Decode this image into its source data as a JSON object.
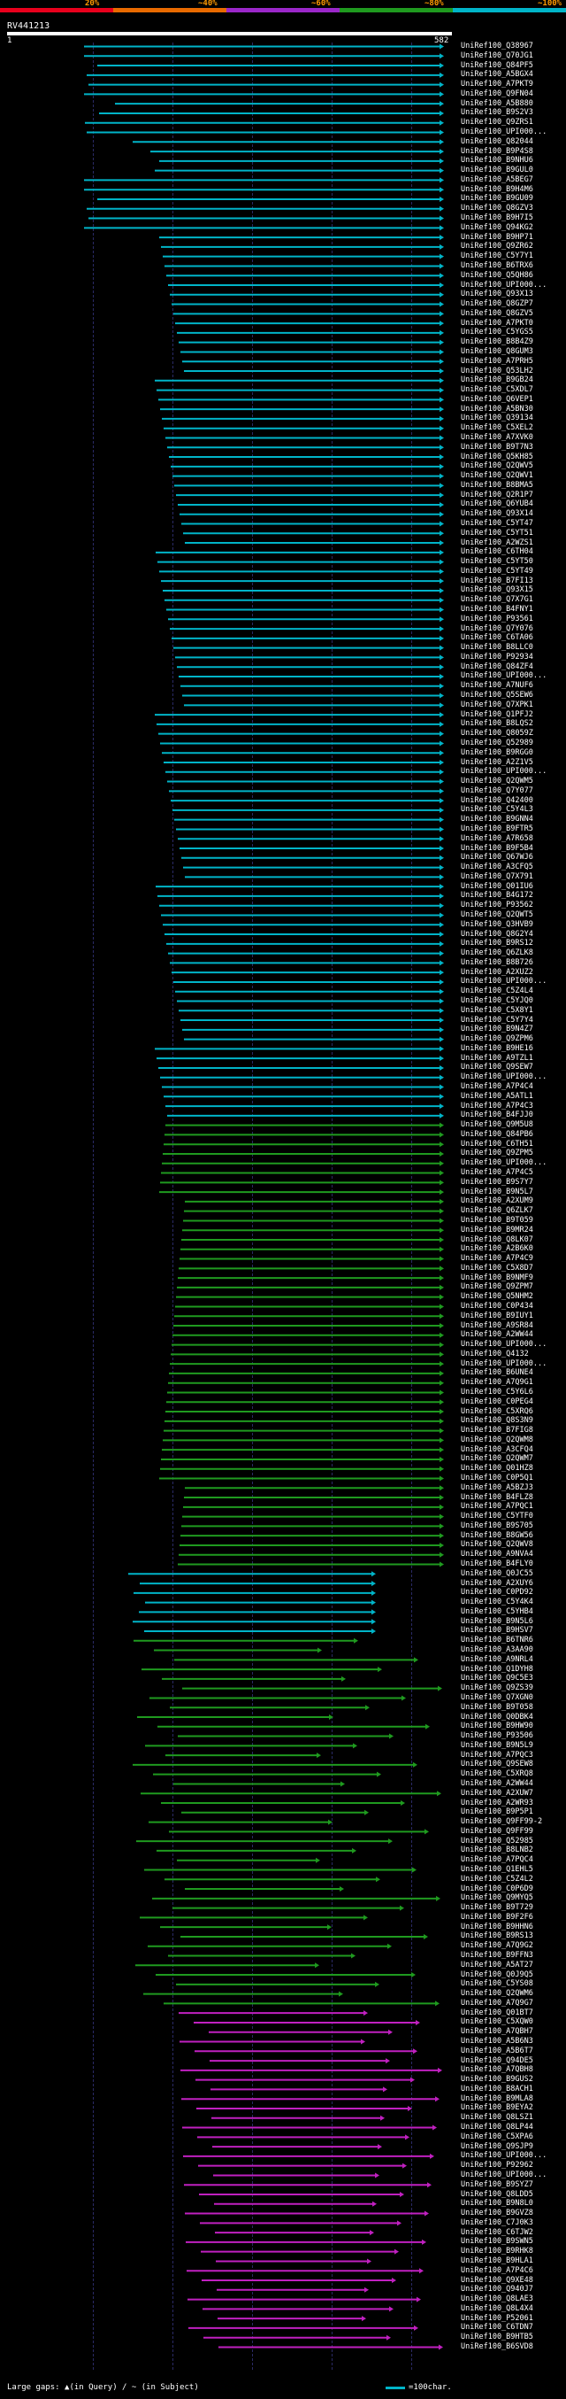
{
  "legend": [
    {
      "label": "20%",
      "color": "#e8001c"
    },
    {
      "label": "~40%",
      "color": "#e86a00"
    },
    {
      "label": "~60%",
      "color": "#9b27c9"
    },
    {
      "label": "~80%",
      "color": "#1f9a1f"
    },
    {
      "label": "~100%",
      "color": "#00b4c8"
    }
  ],
  "query": {
    "title": "RV441213",
    "start": "1",
    "end": "582"
  },
  "footer": {
    "gaps_text": "Large gaps: ▲(in Query) / ~ (in Subject)",
    "scale_text": "=100char."
  },
  "hit_groups": [
    {
      "color": "#00b4c8",
      "labels": [
        "UniRef100_Q38967",
        "UniRef100_Q70JG1",
        "UniRef100_Q84PF5",
        "UniRef100_A5BGX4",
        "UniRef100_A7PKT9",
        "UniRef100_Q9FN04",
        "UniRef100_A5B880",
        "UniRef100_B9S2V3",
        "UniRef100_Q9ZRS1",
        "UniRef100_UPI000...",
        "UniRef100_Q82044",
        "UniRef100_B9P4S8",
        "UniRef100_B9NHU6",
        "UniRef100_B9GUL0",
        "UniRef100_A5BEG7",
        "UniRef100_B9H4M6",
        "UniRef100_B9GU09",
        "UniRef100_Q8GZV3",
        "UniRef100_B9H7I5",
        "UniRef100_Q94KG2",
        "UniRef100_B9HP71",
        "UniRef100_Q9ZR62",
        "UniRef100_C5Y7Y1",
        "UniRef100_B6TRX6",
        "UniRef100_Q5QH86",
        "UniRef100_UPI000...",
        "UniRef100_Q93X13",
        "UniRef100_Q8GZP7",
        "UniRef100_Q8GZV5",
        "UniRef100_A7PKT0",
        "UniRef100_C5YGS5",
        "UniRef100_B8B4Z9",
        "UniRef100_Q8GUM3",
        "UniRef100_A7PRH5",
        "UniRef100_Q53LH2",
        "UniRef100_B9GB24",
        "UniRef100_C5XDL7",
        "UniRef100_Q6VEP1",
        "UniRef100_A5BN30",
        "UniRef100_Q39134",
        "UniRef100_C5XEL2",
        "UniRef100_A7XVK0",
        "UniRef100_B9T7N3",
        "UniRef100_Q5KH85",
        "UniRef100_Q2QWV5",
        "UniRef100_Q2QWV1",
        "UniRef100_B8BMA5",
        "UniRef100_Q2R1P7",
        "UniRef100_Q6YUB4",
        "UniRef100_Q93X14",
        "UniRef100_C5YT47",
        "UniRef100_C5YT51",
        "UniRef100_A2WZS1",
        "UniRef100_C6TH04",
        "UniRef100_C5YT50",
        "UniRef100_C5YT49",
        "UniRef100_B7FI13",
        "UniRef100_Q93X15",
        "UniRef100_Q7X7G1",
        "UniRef100_B4FNY1",
        "UniRef100_P93561",
        "UniRef100_Q7Y076",
        "UniRef100_C6TA06",
        "UniRef100_B8LLC0",
        "UniRef100_P92934",
        "UniRef100_Q84ZF4",
        "UniRef100_UPI000...",
        "UniRef100_A7NUF6",
        "UniRef100_Q5SEW6",
        "UniRef100_Q7XPK1",
        "UniRef100_Q1PFJ2",
        "UniRef100_B8LQS2",
        "UniRef100_Q8059Z",
        "UniRef100_Q52989",
        "UniRef100_B9RGG0",
        "UniRef100_A2Z1V5",
        "UniRef100_UPI000...",
        "UniRef100_Q2QWM5",
        "UniRef100_Q7Y077",
        "UniRef100_Q42400",
        "UniRef100_C5Y4L3",
        "UniRef100_B9GNN4",
        "UniRef100_B9FTR5",
        "UniRef100_A7R658",
        "UniRef100_B9F5B4",
        "UniRef100_Q67WJ6",
        "UniRef100_A3CFQ5",
        "UniRef100_Q7X791",
        "UniRef100_Q01IU6",
        "UniRef100_B4G172",
        "UniRef100_P93562",
        "UniRef100_Q2QWT5",
        "UniRef100_Q3HVB9",
        "UniRef100_Q8G2Y4",
        "UniRef100_B9RS12",
        "UniRef100_Q6ZLK8",
        "UniRef100_B8B726",
        "UniRef100_A2XUZ2",
        "UniRef100_UPI000...",
        "UniRef100_C5Z4L4",
        "UniRef100_C5YJQ0",
        "UniRef100_C5X8Y1",
        "UniRef100_C5Y7Y4",
        "UniRef100_B9N4Z7",
        "UniRef100_Q9ZPM6",
        "UniRef100_B9HE16",
        "UniRef100_A9TZL1",
        "UniRef100_Q9SEW7",
        "UniRef100_UPI000...",
        "UniRef100_A7P4C4",
        "UniRef100_A5ATL1",
        "UniRef100_A7P4C3",
        "UniRef100_B4FJJ0"
      ]
    },
    {
      "color": "#1f9a1f",
      "labels": [
        "UniRef100_Q9M5U8",
        "UniRef100_Q84PB6",
        "UniRef100_C6TH51",
        "UniRef100_Q9ZPM5",
        "UniRef100_UPI000...",
        "UniRef100_A7P4C5",
        "UniRef100_B9S7Y7",
        "UniRef100_B9N5L7",
        "UniRef100_A2XUM9",
        "UniRef100_Q6ZLK7",
        "UniRef100_B9T059",
        "UniRef100_B9MR24",
        "UniRef100_Q8LK07",
        "UniRef100_A2B6K0",
        "UniRef100_A7P4C9",
        "UniRef100_C5X8D7",
        "UniRef100_B9NMF9",
        "UniRef100_Q9ZPM7",
        "UniRef100_Q5NHM2",
        "UniRef100_C0P434",
        "UniRef100_B9IUY1",
        "UniRef100_A9SR84",
        "UniRef100_A2WW44",
        "UniRef100_UPI000...",
        "UniRef100_Q4132",
        "UniRef100_UPI000...",
        "UniRef100_B6UNE4",
        "UniRef100_A7Q9G1",
        "UniRef100_C5Y6L6",
        "UniRef100_C0PEG4",
        "UniRef100_C5XRQ6",
        "UniRef100_Q8S3N9",
        "UniRef100_B7FIG8",
        "UniRef100_Q2QWM8",
        "UniRef100_A3CFQ4",
        "UniRef100_Q2QWM7",
        "UniRef100_Q01HZ8",
        "UniRef100_C0P5Q1",
        "UniRef100_A5BZJ3",
        "UniRef100_B4FLZ8",
        "UniRef100_A7PQC1",
        "UniRef100_C5YTF0",
        "UniRef100_B9S705",
        "UniRef100_B8GW56",
        "UniRef100_Q2QWV8",
        "UniRef100_A9NVA4",
        "UniRef100_B4FLY0"
      ]
    },
    {
      "color": "#00b4c8",
      "labels": [
        "UniRef100_Q0JC55",
        "UniRef100_A2XUY6",
        "UniRef100_C0PD92",
        "UniRef100_C5Y4K4",
        "UniRef100_C5YHB4",
        "UniRef100_B9N5L6",
        "UniRef100_B9HSV7"
      ]
    },
    {
      "color": "#1f9a1f",
      "labels": [
        "UniRef100_B6TNR6",
        "UniRef100_A3AA90",
        "UniRef100_A9NRL4",
        "UniRef100_Q1DYH8",
        "UniRef100_Q9C5E3",
        "UniRef100_Q9ZS39",
        "UniRef100_Q7XGN0",
        "UniRef100_B9T058",
        "UniRef100_Q0DBK4",
        "UniRef100_B9HW90",
        "UniRef100_P93506",
        "UniRef100_B9N5L9",
        "UniRef100_A7PQC3",
        "UniRef100_Q9SEW8",
        "UniRef100_C5XRQ8",
        "UniRef100_A2WW44",
        "UniRef100_A2XUW7",
        "UniRef100_A2WR93",
        "UniRef100_B9P5P1",
        "UniRef100_Q9FF99-2",
        "UniRef100_Q9FF99",
        "UniRef100_Q52985",
        "UniRef100_B8LNB2",
        "UniRef100_A7PQC4",
        "UniRef100_Q1EHL5",
        "UniRef100_C5Z4L2",
        "UniRef100_C0P6D9",
        "UniRef100_Q9MYQ5",
        "UniRef100_B9T729",
        "UniRef100_B9F2F6",
        "UniRef100_B9HHN6",
        "UniRef100_B9RS13",
        "UniRef100_A7Q9G2",
        "UniRef100_B9FFN3",
        "UniRef100_A5AT27",
        "UniRef100_Q0J9Q5",
        "UniRef100_C5YS08",
        "UniRef100_Q2QWM6",
        "UniRef100_A7Q9G7"
      ]
    },
    {
      "color": "#c020c0",
      "labels": [
        "UniRef100_Q01BT7",
        "UniRef100_C5XQW0",
        "UniRef100_A7QBH7",
        "UniRef100_A5B6N3",
        "UniRef100_A5B6T7",
        "UniRef100_Q94DE5",
        "UniRef100_A7QBH8",
        "UniRef100_B9GUS2",
        "UniRef100_B8ACH1",
        "UniRef100_B9MLA8",
        "UniRef100_B9EYA2",
        "UniRef100_Q8LSZ1",
        "UniRef100_Q8LP44",
        "UniRef100_C5XPA6",
        "UniRef100_Q9SJP9",
        "UniRef100_UPI000...",
        "UniRef100_P92962",
        "UniRef100_UPI000...",
        "UniRef100_B9SYZ7",
        "UniRef100_Q8LDD5",
        "UniRef100_B9N8L0",
        "UniRef100_B9GVZ8",
        "UniRef100_C7J0K3",
        "UniRef100_C6TJW2",
        "UniRef100_B9SWN5",
        "UniRef100_B9RHK8",
        "UniRef100_B9HLA1",
        "UniRef100_A7P4C6",
        "UniRef100_Q9XE48",
        "UniRef100_Q940J7",
        "UniRef100_Q8LAE3",
        "UniRef100_Q8L4X4",
        "UniRef100_P52061",
        "UniRef100_C6TDN7",
        "UniRef100_B9HTB5",
        "UniRef100_B6SVD8"
      ]
    }
  ]
}
